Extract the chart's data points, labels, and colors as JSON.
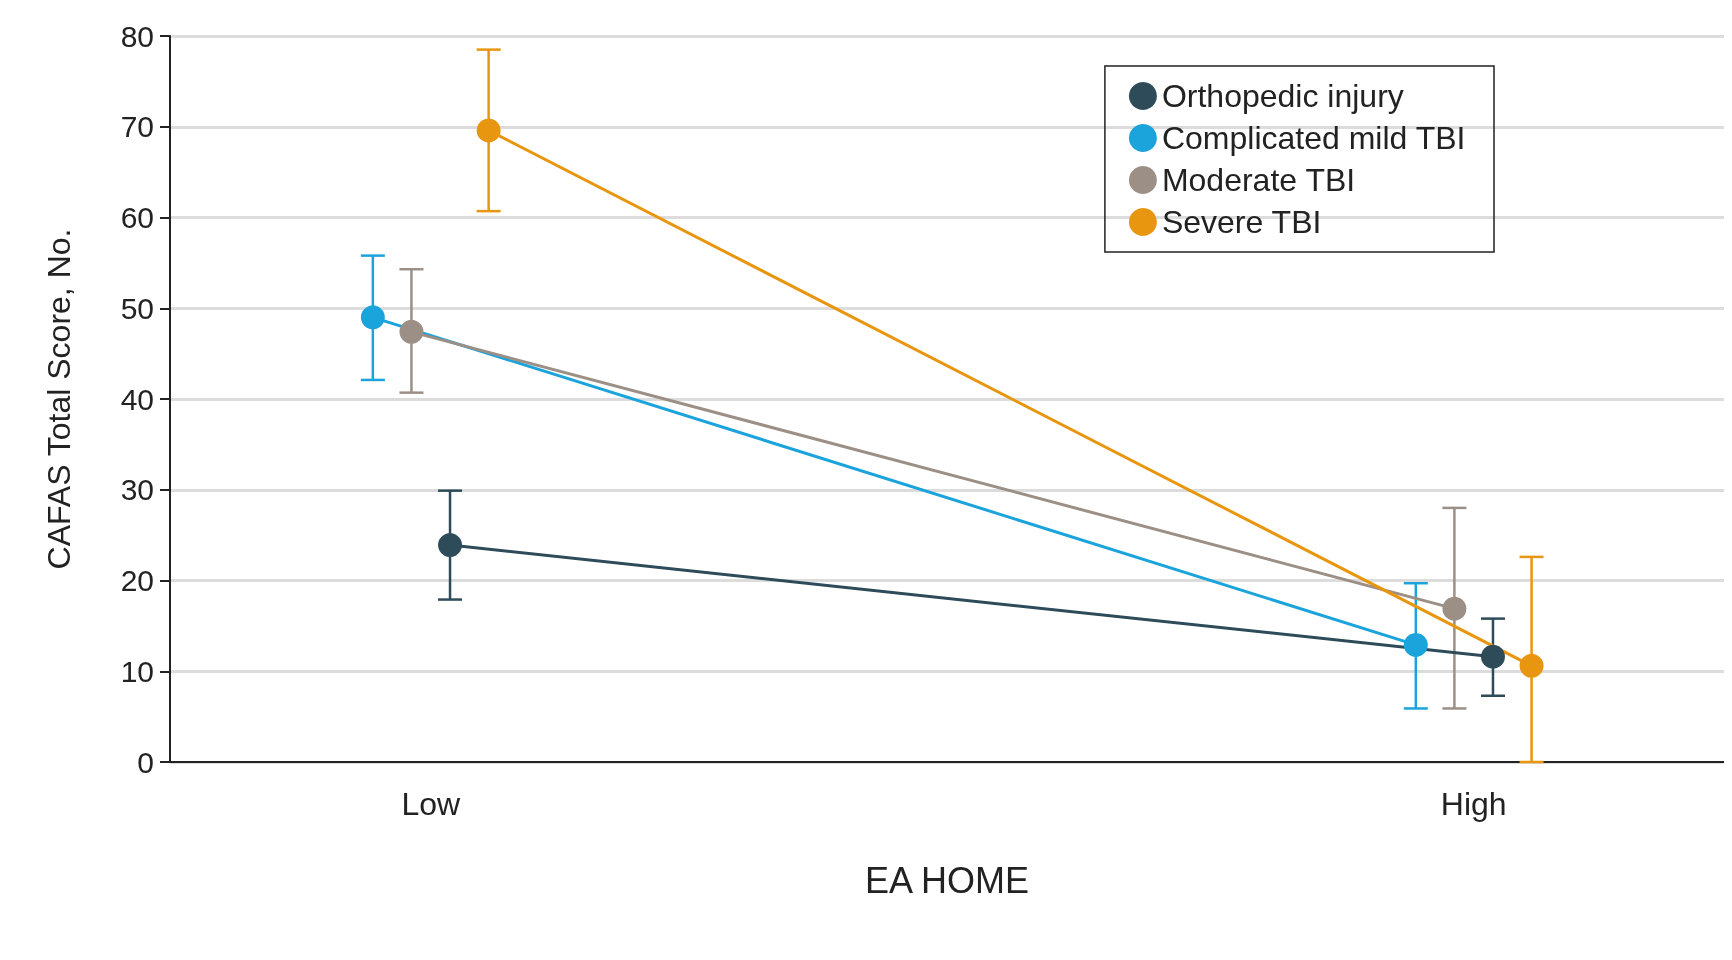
{
  "chart_data": {
    "type": "line",
    "xlabel": "EA HOME",
    "ylabel": "CAFAS Total Score, No.",
    "categories": [
      "Low",
      "High"
    ],
    "series": [
      {
        "name": "Orthopedic injury",
        "color": "#2d4b59",
        "values": [
          23.9,
          11.6
        ],
        "errors": [
          [
            17.9,
            29.9
          ],
          [
            7.3,
            15.8
          ]
        ]
      },
      {
        "name": "Complicated mild TBI",
        "color": "#1ba3dc",
        "values": [
          49.0,
          12.9
        ],
        "errors": [
          [
            42.1,
            55.8
          ],
          [
            5.9,
            19.7
          ]
        ]
      },
      {
        "name": "Moderate TBI",
        "color": "#9b8f86",
        "values": [
          47.4,
          16.9
        ],
        "errors": [
          [
            40.7,
            54.3
          ],
          [
            5.9,
            28.0
          ]
        ]
      },
      {
        "name": "Severe TBI",
        "color": "#e8960f",
        "values": [
          69.6,
          10.6
        ],
        "errors": [
          [
            60.7,
            78.5
          ],
          [
            0,
            22.6
          ]
        ]
      }
    ],
    "ylim": [
      0,
      80
    ],
    "yticks": [
      0,
      10,
      20,
      30,
      40,
      50,
      60,
      70,
      80
    ],
    "grid": "y",
    "legend": "top right",
    "marker": "circle",
    "line_style": "solid"
  }
}
